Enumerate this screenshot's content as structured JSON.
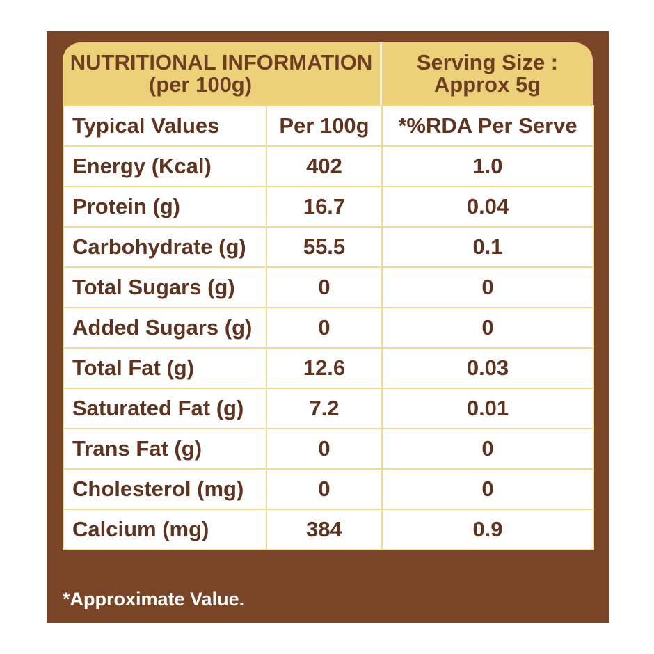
{
  "header": {
    "title_line1": "NUTRITIONAL INFORMATION",
    "title_line2": "(per 100g)",
    "serving_line1": "Serving Size :",
    "serving_line2": "Approx 5g"
  },
  "table": {
    "columns": [
      "Typical Values",
      "Per 100g",
      "*%RDA Per Serve"
    ],
    "rows": [
      {
        "name": "Energy (Kcal)",
        "per100": "402",
        "rda": "1.0"
      },
      {
        "name": "Protein (g)",
        "per100": "16.7",
        "rda": "0.04"
      },
      {
        "name": "Carbohydrate (g)",
        "per100": "55.5",
        "rda": "0.1"
      },
      {
        "name": "Total Sugars (g)",
        "per100": "0",
        "rda": "0"
      },
      {
        "name": "Added Sugars (g)",
        "per100": "0",
        "rda": "0"
      },
      {
        "name": "Total Fat (g)",
        "per100": "12.6",
        "rda": "0.03"
      },
      {
        "name": "Saturated Fat (g)",
        "per100": "7.2",
        "rda": "0.01"
      },
      {
        "name": "Trans Fat (g)",
        "per100": "0",
        "rda": "0"
      },
      {
        "name": "Cholesterol (mg)",
        "per100": "0",
        "rda": "0"
      },
      {
        "name": "Calcium (mg)",
        "per100": "384",
        "rda": "0.9"
      }
    ]
  },
  "footnote": "*Approximate Value.",
  "colors": {
    "panel_brown": "#7a4527",
    "header_gold": "#ecd07a",
    "text_brown": "#5e3420",
    "grid_line": "#f1dc95"
  }
}
